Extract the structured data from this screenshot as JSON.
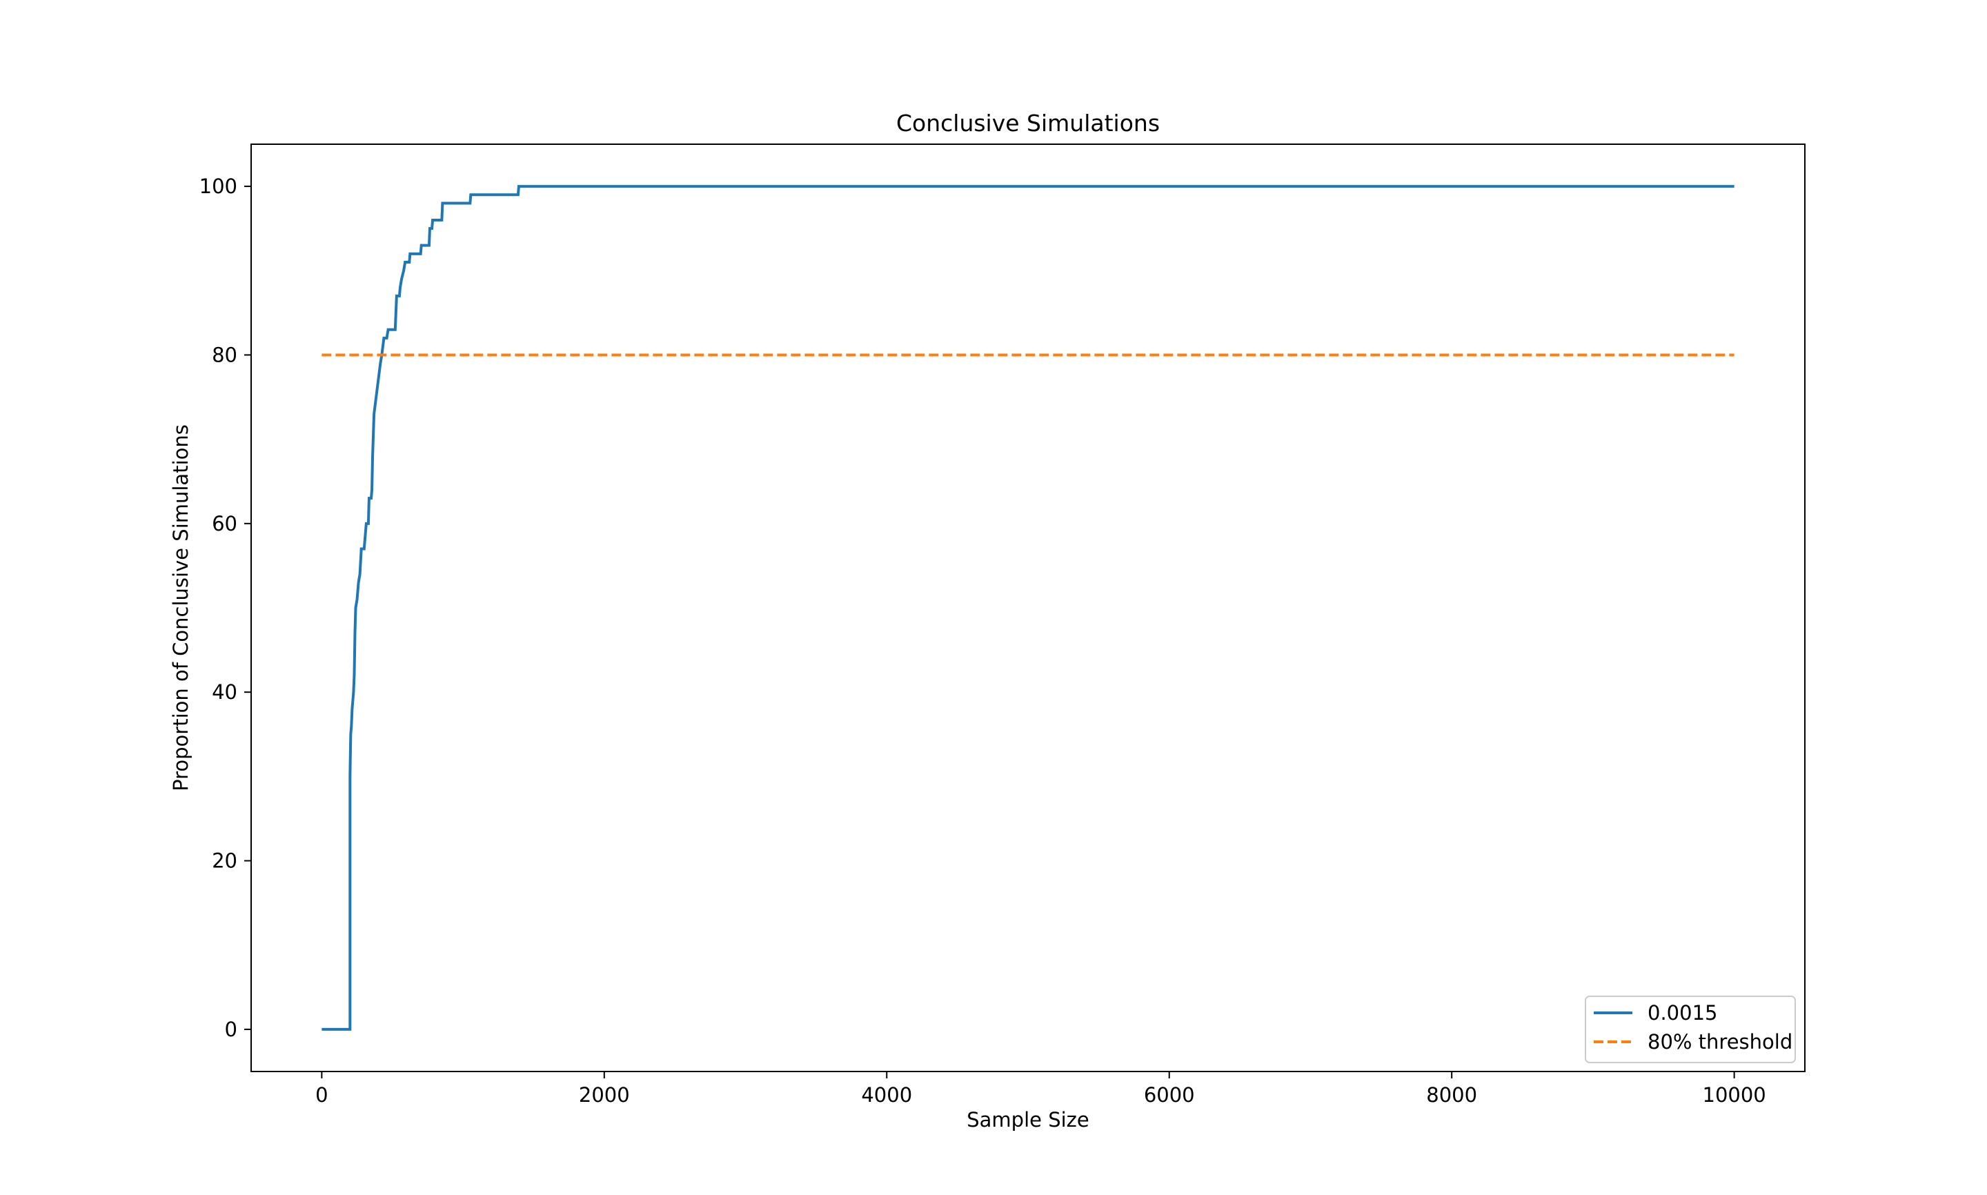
{
  "chart_data": {
    "type": "line",
    "title": "Conclusive Simulations",
    "xlabel": "Sample Size",
    "ylabel": "Proportion of Conclusive Simulations",
    "xlim": [
      -500,
      10500
    ],
    "ylim": [
      -5,
      105
    ],
    "x_ticks": [
      0,
      2000,
      4000,
      6000,
      8000,
      10000
    ],
    "y_ticks": [
      0,
      20,
      40,
      60,
      80,
      100
    ],
    "grid": false,
    "legend_position": "lower-right",
    "series": [
      {
        "name": "0.0015",
        "style": "solid-step",
        "color": "#1f77b4",
        "points": [
          [
            0,
            0
          ],
          [
            200,
            0
          ],
          [
            200,
            30
          ],
          [
            205,
            35
          ],
          [
            210,
            36
          ],
          [
            215,
            38
          ],
          [
            220,
            39
          ],
          [
            225,
            40
          ],
          [
            230,
            42
          ],
          [
            235,
            47
          ],
          [
            240,
            50
          ],
          [
            250,
            51
          ],
          [
            260,
            53
          ],
          [
            270,
            54
          ],
          [
            280,
            57
          ],
          [
            300,
            57
          ],
          [
            305,
            58
          ],
          [
            315,
            60
          ],
          [
            330,
            60
          ],
          [
            335,
            63
          ],
          [
            350,
            63
          ],
          [
            355,
            64
          ],
          [
            360,
            68
          ],
          [
            370,
            73
          ],
          [
            385,
            75
          ],
          [
            400,
            77
          ],
          [
            415,
            79
          ],
          [
            425,
            80
          ],
          [
            440,
            82
          ],
          [
            460,
            82
          ],
          [
            470,
            83
          ],
          [
            520,
            83
          ],
          [
            530,
            87
          ],
          [
            550,
            87
          ],
          [
            555,
            88
          ],
          [
            565,
            89
          ],
          [
            580,
            90
          ],
          [
            590,
            91
          ],
          [
            620,
            91
          ],
          [
            625,
            92
          ],
          [
            700,
            92
          ],
          [
            705,
            93
          ],
          [
            760,
            93
          ],
          [
            765,
            95
          ],
          [
            780,
            95
          ],
          [
            785,
            96
          ],
          [
            850,
            96
          ],
          [
            855,
            98
          ],
          [
            1050,
            98
          ],
          [
            1055,
            99
          ],
          [
            1390,
            99
          ],
          [
            1395,
            100
          ],
          [
            10000,
            100
          ]
        ]
      },
      {
        "name": "80% threshold",
        "style": "dashed",
        "color": "#ff7f0e",
        "points": [
          [
            0,
            80
          ],
          [
            10000,
            80
          ]
        ]
      }
    ]
  }
}
